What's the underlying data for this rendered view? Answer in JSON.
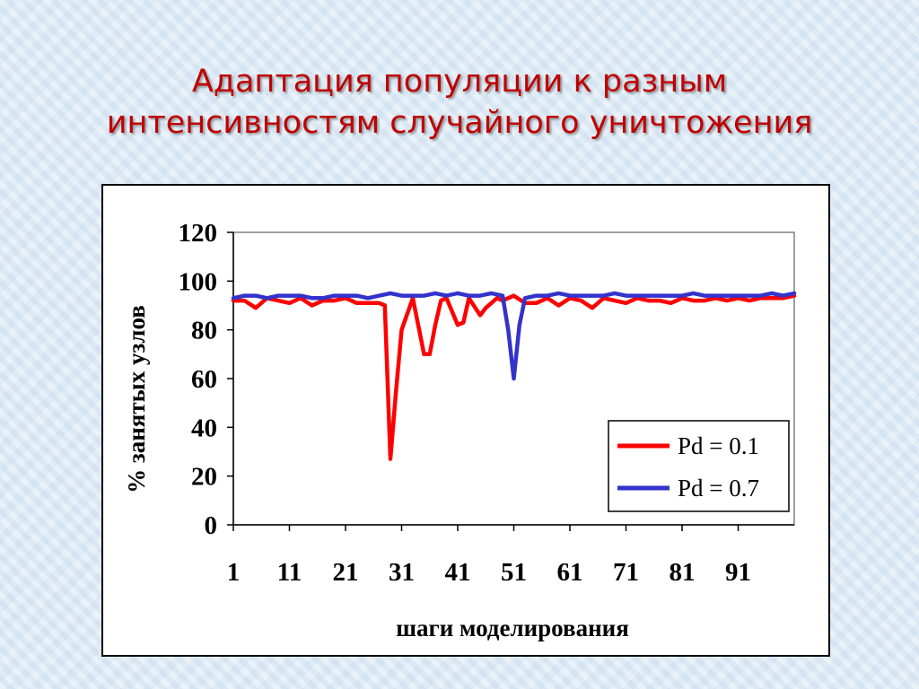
{
  "slide": {
    "title_line1": "Адаптация популяции к разным",
    "title_line2": "интенсивностям случайного уничтожения"
  },
  "chart_data": {
    "type": "line",
    "xlabel": "шаги моделирования",
    "ylabel": "% занятых узлов",
    "ylim": [
      0,
      120
    ],
    "yticks": [
      0,
      20,
      40,
      60,
      80,
      100,
      120
    ],
    "xlim": [
      1,
      101
    ],
    "xtick_labels": [
      "1",
      "11",
      "21",
      "31",
      "41",
      "51",
      "61",
      "71",
      "81",
      "91"
    ],
    "grid": false,
    "legend_position": "bottom-right",
    "series": [
      {
        "name": "Pd = 0.1",
        "color": "#ff0000",
        "x": [
          1,
          3,
          5,
          7,
          9,
          11,
          13,
          15,
          17,
          19,
          21,
          23,
          25,
          27,
          28,
          29,
          30,
          31,
          33,
          35,
          36,
          37,
          38,
          39,
          41,
          42,
          43,
          45,
          46,
          47,
          48,
          49,
          51,
          53,
          55,
          57,
          59,
          61,
          63,
          65,
          67,
          69,
          71,
          73,
          75,
          77,
          79,
          81,
          83,
          85,
          87,
          89,
          91,
          93,
          95,
          97,
          99,
          101
        ],
        "values": [
          92,
          92,
          89,
          93,
          92,
          91,
          93,
          90,
          92,
          92,
          93,
          91,
          91,
          91,
          90,
          27,
          55,
          80,
          93,
          70,
          70,
          82,
          92,
          93,
          82,
          83,
          93,
          86,
          89,
          91,
          93,
          92,
          94,
          91,
          91,
          93,
          90,
          93,
          92,
          89,
          93,
          92,
          91,
          93,
          92,
          92,
          91,
          93,
          92,
          92,
          93,
          92,
          93,
          92,
          93,
          93,
          93,
          94
        ]
      },
      {
        "name": "Pd = 0.7",
        "color": "#3333cc",
        "x": [
          1,
          3,
          5,
          7,
          9,
          11,
          13,
          15,
          17,
          19,
          21,
          23,
          25,
          27,
          29,
          31,
          33,
          35,
          37,
          39,
          41,
          43,
          45,
          47,
          49,
          50,
          51,
          52,
          53,
          55,
          57,
          59,
          61,
          63,
          65,
          67,
          69,
          71,
          73,
          75,
          77,
          79,
          81,
          83,
          85,
          87,
          89,
          91,
          93,
          95,
          97,
          99,
          101
        ],
        "values": [
          93,
          94,
          94,
          93,
          94,
          94,
          94,
          93,
          93,
          94,
          94,
          94,
          93,
          94,
          95,
          94,
          94,
          94,
          95,
          94,
          95,
          94,
          94,
          95,
          94,
          80,
          60,
          82,
          93,
          94,
          94,
          95,
          94,
          94,
          94,
          94,
          95,
          94,
          94,
          94,
          94,
          94,
          94,
          95,
          94,
          94,
          94,
          94,
          94,
          94,
          95,
          94,
          95
        ]
      }
    ]
  }
}
